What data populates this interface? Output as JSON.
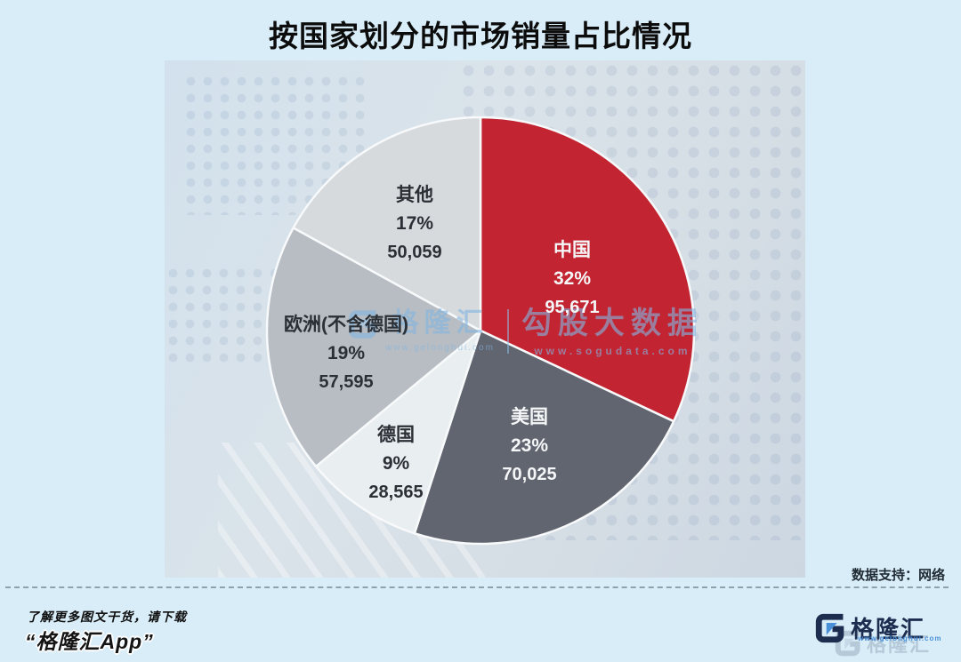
{
  "title": "按国家划分的市场销量占比情况",
  "chart_data": {
    "type": "pie",
    "title": "按国家划分的市场销量占比情况",
    "direction": "clockwise",
    "start_angle_deg": 0,
    "legend": "none",
    "slices": [
      {
        "label": "中国",
        "pct": 32,
        "pct_label": "32%",
        "value": "95,671",
        "color": "#c32431",
        "text_color": "#ffffff"
      },
      {
        "label": "美国",
        "pct": 23,
        "pct_label": "23%",
        "value": "70,025",
        "color": "#61656f",
        "text_color": "#ffffff"
      },
      {
        "label": "德国",
        "pct": 9,
        "pct_label": "9%",
        "value": "28,565",
        "color": "#e9eef1",
        "text_color": "#2b2f36"
      },
      {
        "label": "欧洲(不含德国)",
        "pct": 19,
        "pct_label": "19%",
        "value": "57,595",
        "color": "#b7bdc3",
        "text_color": "#2b2f36"
      },
      {
        "label": "其他",
        "pct": 17,
        "pct_label": "17%",
        "value": "50,059",
        "color": "#d6dadd",
        "text_color": "#2b2f36"
      }
    ]
  },
  "watermark": {
    "gelonghui": "格隆汇",
    "gelonghui_url": "www.gelonghui.com",
    "sogu": "勾股大数据",
    "sogu_url": "www.sogudata.com"
  },
  "source": {
    "label": "数据支持：网络"
  },
  "footer": {
    "promo_line1": "了解更多图文干货，请下载",
    "promo_line2": "“格隆汇App”",
    "brand": "格隆汇",
    "brand_ghost": "格隆汇",
    "brand_url": "www.gelonghui.com"
  },
  "colors": {
    "page_bg": "#d8edf8",
    "panel_bg": "#d6e0e8",
    "accent_red": "#c32431",
    "logo_navy": "#1d2d50",
    "logo_blue": "#4a90d9",
    "slice_stroke": "#f7f9fa"
  }
}
